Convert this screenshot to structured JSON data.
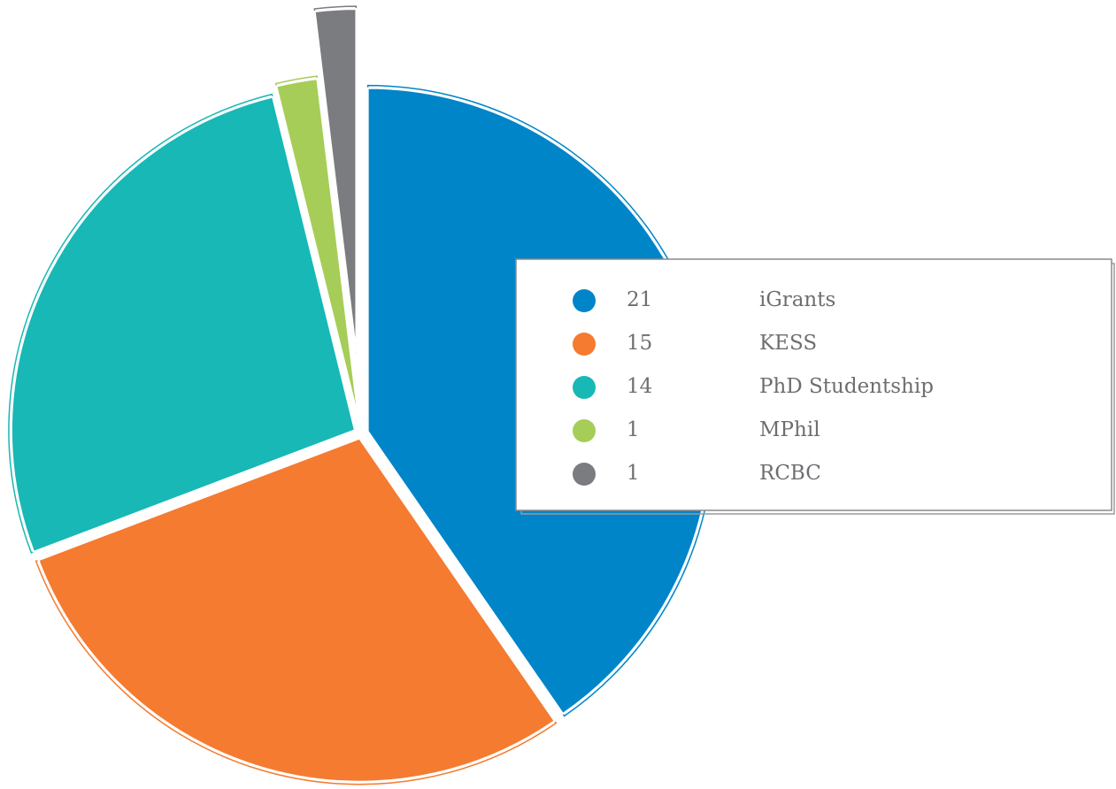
{
  "chart_data": {
    "type": "pie",
    "categories": [
      "iGrants",
      "KESS",
      "PhD Studentship",
      "MPhil",
      "RCBC"
    ],
    "values": [
      21,
      15,
      14,
      1,
      1
    ],
    "colors": [
      "#0085c9",
      "#f47b30",
      "#17b8b5",
      "#a6cd57",
      "#7b7c80"
    ],
    "legend": "right"
  }
}
